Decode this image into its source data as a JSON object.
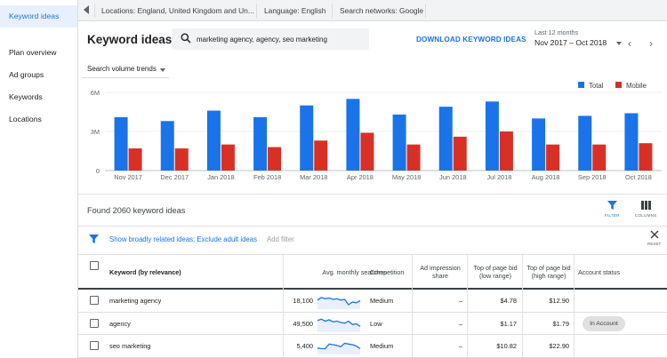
{
  "sidebar": {
    "items": [
      {
        "label": "Keyword ideas",
        "active": true
      },
      {
        "label": "Plan overview"
      },
      {
        "label": "Ad groups"
      },
      {
        "label": "Keywords"
      },
      {
        "label": "Locations"
      }
    ]
  },
  "topbar": {
    "locations": "Locations: England, United Kingdom and Un...",
    "language": "Language: English",
    "networks": "Search networks: Google"
  },
  "header": {
    "title": "Keyword ideas",
    "search_query": "marketing agency, agency, seo marketing",
    "download_label": "DOWNLOAD KEYWORD IDEAS",
    "period_label": "Last 12 months",
    "period_value": "Nov 2017 – Oct 2018"
  },
  "chart_controls": {
    "dropdown_label": "Search volume trends"
  },
  "chart_data": {
    "type": "bar",
    "categories": [
      "Nov 2017",
      "Dec 2017",
      "Jan 2018",
      "Feb 2018",
      "Mar 2018",
      "Apr 2018",
      "May 2018",
      "Jun 2018",
      "Jul 2018",
      "Aug 2018",
      "Sep 2018",
      "Oct 2018"
    ],
    "series": [
      {
        "name": "Total",
        "color": "#1a73e8",
        "values": [
          4.1,
          3.8,
          4.6,
          4.1,
          5.0,
          5.5,
          4.3,
          4.9,
          5.3,
          4.0,
          4.2,
          4.4
        ]
      },
      {
        "name": "Mobile",
        "color": "#d93025",
        "values": [
          1.7,
          1.7,
          2.0,
          1.8,
          2.3,
          2.9,
          2.0,
          2.6,
          3.0,
          2.0,
          2.0,
          2.1
        ]
      }
    ],
    "yticks": [
      "6M",
      "3M",
      "0"
    ],
    "ylim": [
      0,
      6
    ],
    "legend_position": "top-right",
    "grid": true
  },
  "results": {
    "found_text": "Found 2060 keyword ideas",
    "filter_label": "FILTER",
    "columns_label": "COLUMNS",
    "filter_text": "Show broadly related ideas; Exclude adult ideas",
    "add_filter": "Add filter",
    "reset_label": "RESET"
  },
  "table": {
    "headers": {
      "keyword": "Keyword (by relevance)",
      "avg": "Avg. monthly searches",
      "competition": "Competition",
      "impression": "Ad impression share",
      "bid_low": "Top of page bid (low range)",
      "bid_high": "Top of page bid (high range)",
      "status": "Account status"
    },
    "rows": [
      {
        "keyword": "marketing agency",
        "avg": "18,100",
        "competition": "Medium",
        "impression": "–",
        "bid_low": "$4.78",
        "bid_high": "$12.90",
        "status": "",
        "trend": [
          0.55,
          0.75,
          0.65,
          0.7,
          0.6,
          0.65,
          0.55,
          0.6,
          0.2,
          0.4,
          0.35,
          0.5
        ]
      },
      {
        "keyword": "agency",
        "avg": "49,500",
        "competition": "Low",
        "impression": "–",
        "bid_low": "$1.17",
        "bid_high": "$1.79",
        "status": "In Account",
        "trend": [
          0.75,
          0.85,
          0.7,
          0.8,
          0.65,
          0.7,
          0.6,
          0.55,
          0.7,
          0.45,
          0.5,
          0.3
        ]
      },
      {
        "keyword": "seo marketing",
        "avg": "5,400",
        "competition": "Medium",
        "impression": "–",
        "bid_low": "$10.82",
        "bid_high": "$22.90",
        "status": "",
        "trend": [
          0.35,
          0.3,
          0.3,
          0.65,
          0.6,
          0.55,
          0.45,
          0.7,
          0.65,
          0.6,
          0.5,
          0.3
        ]
      }
    ]
  }
}
